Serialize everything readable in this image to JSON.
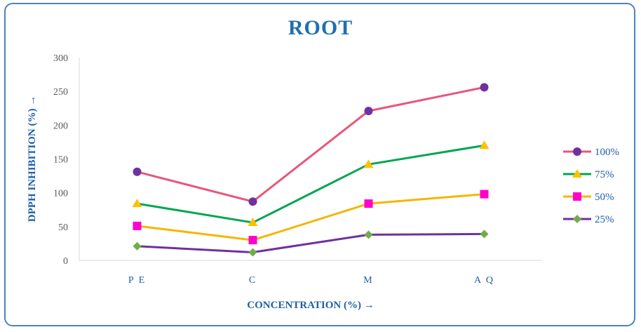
{
  "chart_data": {
    "type": "line",
    "title": "ROOT",
    "xlabel": "CONCENTRATION (%) →",
    "ylabel": "DPPH INHIBITION (%) →",
    "categories": [
      "PE",
      "C",
      "M",
      "AQ"
    ],
    "ylim": [
      0,
      300
    ],
    "yticks": [
      0,
      50,
      100,
      150,
      200,
      250,
      300
    ],
    "grid": false,
    "legend_position": "right",
    "series": [
      {
        "name": "100%",
        "values": [
          131,
          87,
          221,
          256
        ],
        "line_color": "#e8567a",
        "marker_color": "#7030a0",
        "marker": "circle"
      },
      {
        "name": "75%",
        "values": [
          84,
          56,
          142,
          170
        ],
        "line_color": "#00a651",
        "marker_color": "#ffc000",
        "marker": "triangle"
      },
      {
        "name": "50%",
        "values": [
          51,
          30,
          84,
          98
        ],
        "line_color": "#f2b705",
        "marker_color": "#ff00cc",
        "marker": "square"
      },
      {
        "name": "25%",
        "values": [
          21,
          12,
          38,
          39
        ],
        "line_color": "#7030a0",
        "marker_color": "#70ad47",
        "marker": "diamond"
      }
    ]
  }
}
